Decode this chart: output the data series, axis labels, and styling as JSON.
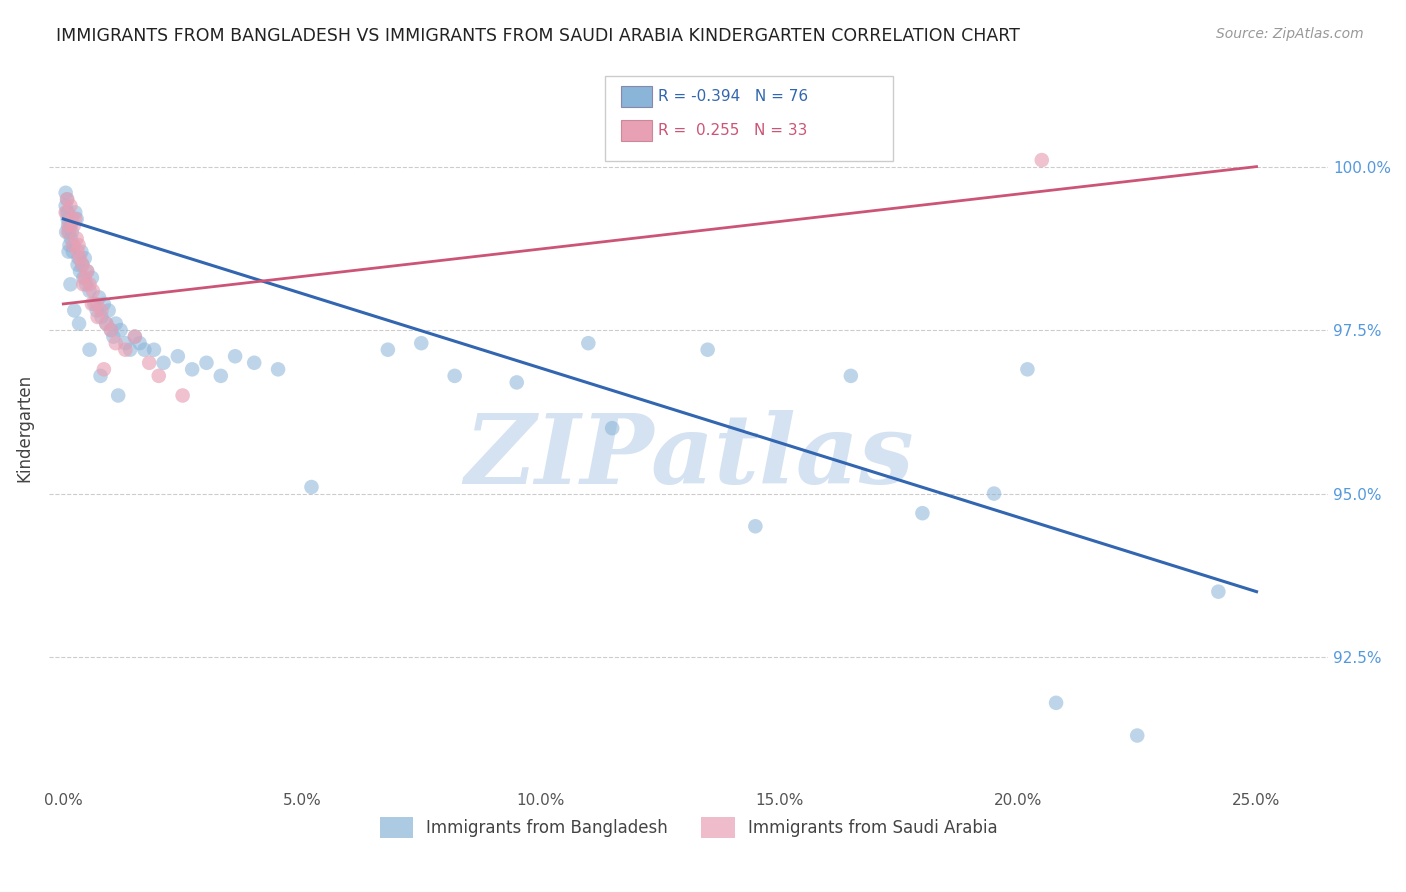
{
  "title": "IMMIGRANTS FROM BANGLADESH VS IMMIGRANTS FROM SAUDI ARABIA KINDERGARTEN CORRELATION CHART",
  "source": "Source: ZipAtlas.com",
  "xlabel_vals": [
    0.0,
    5.0,
    10.0,
    15.0,
    20.0,
    25.0
  ],
  "ylabel_vals": [
    92.5,
    95.0,
    97.5,
    100.0
  ],
  "ylim": [
    90.5,
    101.5
  ],
  "xlim": [
    -0.3,
    26.5
  ],
  "blue_R": -0.394,
  "blue_N": 76,
  "pink_R": 0.255,
  "pink_N": 33,
  "blue_color": "#8ab4d8",
  "pink_color": "#e8a0b4",
  "blue_line_color": "#3366b0",
  "pink_line_color": "#cc5577",
  "watermark": "ZIPatlas",
  "watermark_color": "#d0dff0",
  "blue_line_x0": 0.0,
  "blue_line_y0": 99.2,
  "blue_line_x1": 25.0,
  "blue_line_y1": 93.5,
  "pink_line_x0": 0.0,
  "pink_line_y0": 97.9,
  "pink_line_x1": 25.0,
  "pink_line_y1": 100.0,
  "blue_x": [
    0.05,
    0.05,
    0.07,
    0.08,
    0.09,
    0.1,
    0.1,
    0.12,
    0.13,
    0.15,
    0.16,
    0.18,
    0.2,
    0.22,
    0.25,
    0.28,
    0.3,
    0.32,
    0.35,
    0.38,
    0.4,
    0.42,
    0.45,
    0.48,
    0.5,
    0.55,
    0.6,
    0.65,
    0.7,
    0.75,
    0.8,
    0.85,
    0.9,
    0.95,
    1.0,
    1.05,
    1.1,
    1.2,
    1.3,
    1.4,
    1.5,
    1.6,
    1.7,
    1.9,
    2.1,
    2.4,
    2.7,
    3.0,
    3.3,
    3.6,
    4.0,
    4.5,
    5.2,
    6.8,
    7.5,
    8.2,
    9.5,
    11.0,
    11.5,
    13.5,
    14.5,
    16.5,
    18.0,
    19.5,
    20.2,
    20.8,
    22.5,
    24.2,
    0.06,
    0.11,
    0.15,
    0.23,
    0.33,
    0.55,
    0.78,
    1.15
  ],
  "blue_y": [
    99.6,
    99.4,
    99.3,
    99.5,
    99.2,
    99.3,
    99.1,
    99.0,
    98.8,
    99.1,
    98.9,
    99.0,
    98.7,
    98.8,
    99.3,
    99.2,
    98.5,
    98.6,
    98.4,
    98.7,
    98.5,
    98.3,
    98.6,
    98.2,
    98.4,
    98.1,
    98.3,
    97.9,
    97.8,
    98.0,
    97.7,
    97.9,
    97.6,
    97.8,
    97.5,
    97.4,
    97.6,
    97.5,
    97.3,
    97.2,
    97.4,
    97.3,
    97.2,
    97.2,
    97.0,
    97.1,
    96.9,
    97.0,
    96.8,
    97.1,
    97.0,
    96.9,
    95.1,
    97.2,
    97.3,
    96.8,
    96.7,
    97.3,
    96.0,
    97.2,
    94.5,
    96.8,
    94.7,
    95.0,
    96.9,
    91.8,
    91.3,
    93.5,
    99.0,
    98.7,
    98.2,
    97.8,
    97.6,
    97.2,
    96.8,
    96.5
  ],
  "pink_x": [
    0.05,
    0.08,
    0.1,
    0.12,
    0.15,
    0.18,
    0.2,
    0.22,
    0.25,
    0.28,
    0.3,
    0.32,
    0.35,
    0.4,
    0.45,
    0.5,
    0.55,
    0.62,
    0.7,
    0.8,
    0.9,
    1.0,
    1.1,
    1.3,
    1.5,
    1.8,
    2.0,
    2.5,
    0.42,
    0.6,
    0.72,
    0.85,
    20.5
  ],
  "pink_y": [
    99.3,
    99.5,
    99.0,
    99.1,
    99.4,
    99.2,
    98.8,
    99.1,
    99.2,
    98.9,
    98.7,
    98.8,
    98.6,
    98.5,
    98.3,
    98.4,
    98.2,
    98.1,
    97.9,
    97.8,
    97.6,
    97.5,
    97.3,
    97.2,
    97.4,
    97.0,
    96.8,
    96.5,
    98.2,
    97.9,
    97.7,
    96.9,
    100.1
  ]
}
